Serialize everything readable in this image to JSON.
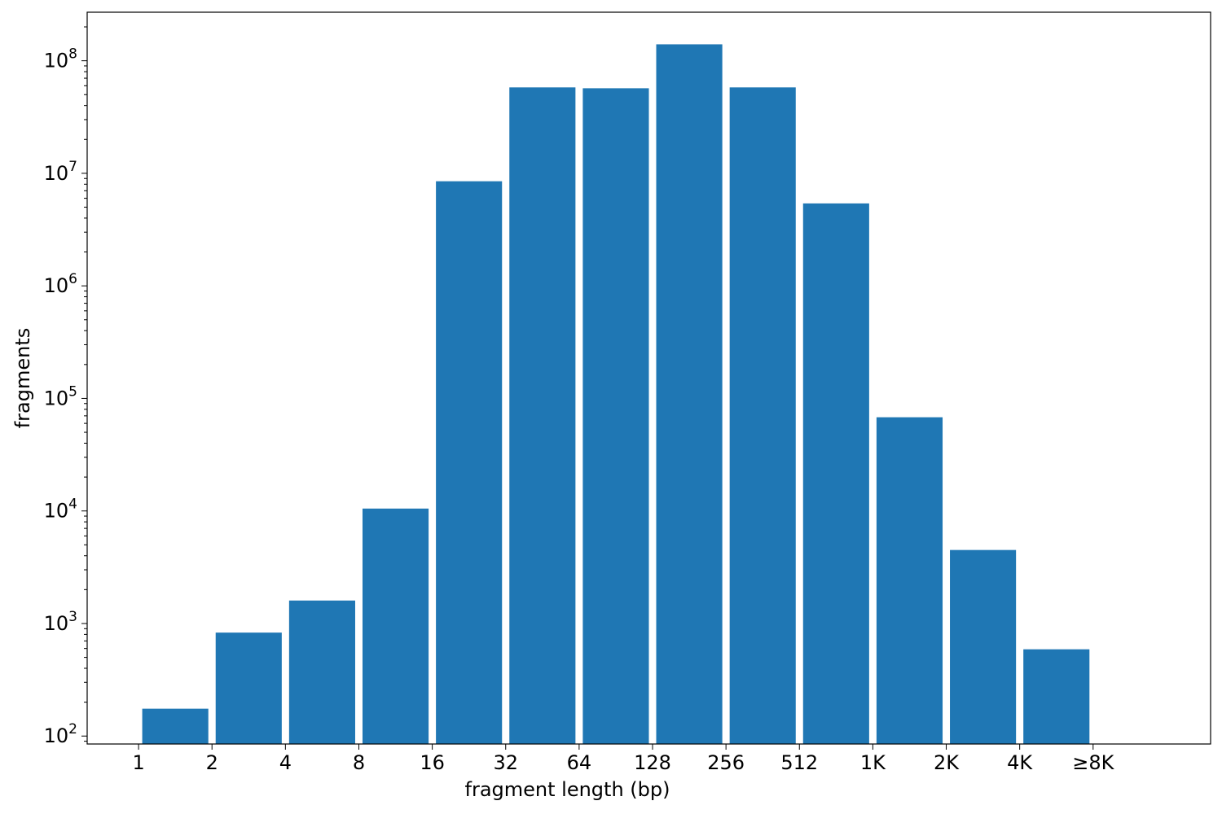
{
  "chart_data": {
    "type": "bar",
    "xlabel": "fragment length (bp)",
    "ylabel": "fragments",
    "yscale": "log",
    "ylim": [
      85,
      270000000
    ],
    "y_ticks": [
      {
        "value": 100,
        "base": "10",
        "exp": "2"
      },
      {
        "value": 1000,
        "base": "10",
        "exp": "3"
      },
      {
        "value": 10000,
        "base": "10",
        "exp": "4"
      },
      {
        "value": 100000,
        "base": "10",
        "exp": "5"
      },
      {
        "value": 1000000,
        "base": "10",
        "exp": "6"
      },
      {
        "value": 10000000,
        "base": "10",
        "exp": "7"
      },
      {
        "value": 100000000,
        "base": "10",
        "exp": "8"
      }
    ],
    "x_tick_labels": [
      "1",
      "2",
      "4",
      "8",
      "16",
      "32",
      "64",
      "128",
      "256",
      "512",
      "1K",
      "2K",
      "4K",
      "≥8K"
    ],
    "bin_edges_index_range": [
      -0.7,
      14.6
    ],
    "bars": [
      {
        "from": 0,
        "to": 1,
        "value": 175
      },
      {
        "from": 1,
        "to": 2,
        "value": 830
      },
      {
        "from": 2,
        "to": 3,
        "value": 1600
      },
      {
        "from": 3,
        "to": 4,
        "value": 10500
      },
      {
        "from": 4,
        "to": 5,
        "value": 8500000
      },
      {
        "from": 5,
        "to": 6,
        "value": 58000000
      },
      {
        "from": 6,
        "to": 7,
        "value": 57000000
      },
      {
        "from": 7,
        "to": 8,
        "value": 140000000
      },
      {
        "from": 8,
        "to": 9,
        "value": 58000000
      },
      {
        "from": 9,
        "to": 10,
        "value": 5400000
      },
      {
        "from": 10,
        "to": 11,
        "value": 68000
      },
      {
        "from": 11,
        "to": 12,
        "value": 4500
      },
      {
        "from": 12,
        "to": 13,
        "value": 590
      }
    ],
    "bar_color": "#1f77b4",
    "grid": false,
    "legend": "none"
  }
}
